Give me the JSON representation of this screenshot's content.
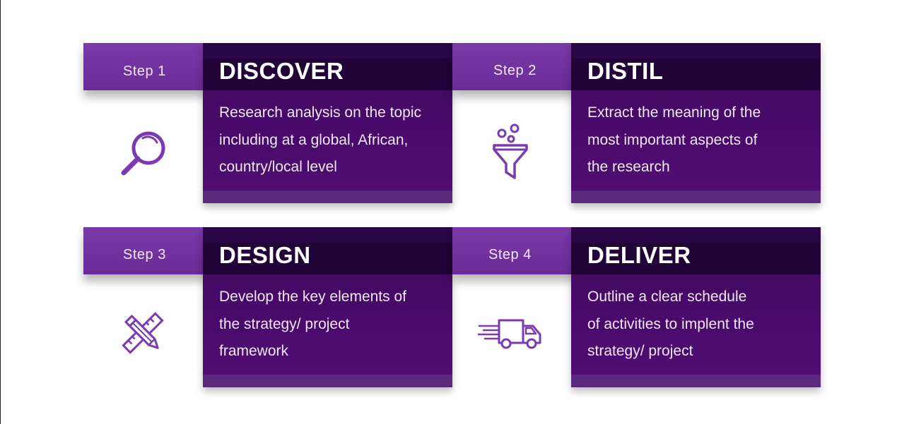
{
  "colors": {
    "accent": "#7a3aa8",
    "card_dark": "#220337",
    "card_body": "#4a0a6c",
    "icon": "#7b3ab2"
  },
  "steps": [
    {
      "step_label": "Step 1",
      "title": "DISCOVER",
      "body_lines": [
        "Research analysis on the topic",
        "including at a global, African,",
        "country/local level"
      ],
      "icon": "magnifier-icon"
    },
    {
      "step_label": "Step 2",
      "title": "DISTIL",
      "body_lines": [
        "Extract the meaning of the",
        "most important aspects of",
        "the research"
      ],
      "icon": "funnel-icon"
    },
    {
      "step_label": "Step 3",
      "title": "DESIGN",
      "body_lines": [
        "Develop the key elements of",
        "the strategy/ project",
        "framework"
      ],
      "icon": "pencil-ruler-icon"
    },
    {
      "step_label": "Step 4",
      "title": "DELIVER",
      "body_lines": [
        "Outline a clear schedule",
        "of activities to implent the",
        "strategy/ project"
      ],
      "icon": "delivery-truck-icon"
    }
  ]
}
